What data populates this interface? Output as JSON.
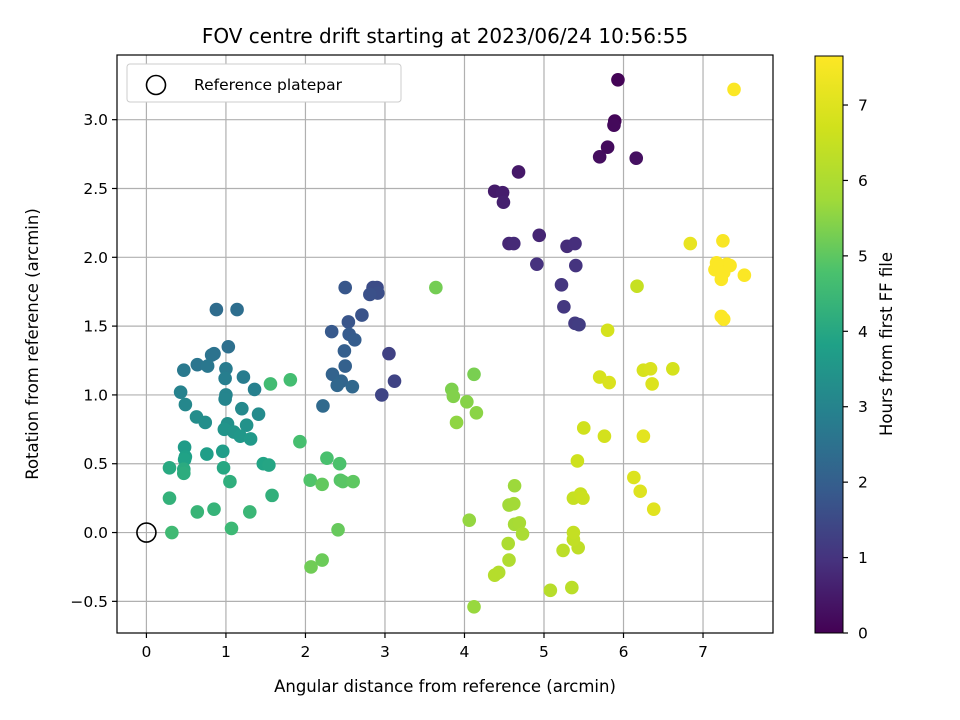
{
  "chart_data": {
    "type": "scatter",
    "title": "FOV centre drift starting at 2023/06/24 10:56:55",
    "xlabel": "Angular distance from reference (arcmin)",
    "ylabel": "Rotation from reference (arcmin)",
    "xlim": [
      -0.37,
      7.88
    ],
    "ylim": [
      -0.73,
      3.47
    ],
    "xticks": [
      0,
      1,
      2,
      3,
      4,
      5,
      6,
      7
    ],
    "yticks": [
      -0.5,
      0.0,
      0.5,
      1.0,
      1.5,
      2.0,
      2.5,
      3.0
    ],
    "xtick_labels": [
      "0",
      "1",
      "2",
      "3",
      "4",
      "5",
      "6",
      "7"
    ],
    "ytick_labels": [
      "−0.5",
      "0.0",
      "0.5",
      "1.0",
      "1.5",
      "2.0",
      "2.5",
      "3.0"
    ],
    "grid": true,
    "legend": {
      "position": "top-left",
      "entries": [
        "Reference platepar"
      ]
    },
    "reference_point": {
      "x": 0.0,
      "y": 0.0
    },
    "colorbar": {
      "label": "Hours from first FF file",
      "range": [
        0,
        7.65
      ],
      "ticks": [
        0,
        1,
        2,
        3,
        4,
        5,
        6,
        7
      ],
      "tick_labels": [
        "0",
        "1",
        "2",
        "3",
        "4",
        "5",
        "6",
        "7"
      ],
      "colormap": "viridis"
    },
    "points": [
      {
        "x": 5.93,
        "y": 3.29,
        "c": 0.05
      },
      {
        "x": 5.89,
        "y": 2.99,
        "c": 0.1
      },
      {
        "x": 5.88,
        "y": 2.96,
        "c": 0.15
      },
      {
        "x": 5.8,
        "y": 2.8,
        "c": 0.2
      },
      {
        "x": 5.7,
        "y": 2.73,
        "c": 0.25
      },
      {
        "x": 6.16,
        "y": 2.72,
        "c": 0.3
      },
      {
        "x": 4.68,
        "y": 2.62,
        "c": 0.45
      },
      {
        "x": 4.38,
        "y": 2.48,
        "c": 0.5
      },
      {
        "x": 4.48,
        "y": 2.47,
        "c": 0.55
      },
      {
        "x": 4.49,
        "y": 2.4,
        "c": 0.6
      },
      {
        "x": 4.94,
        "y": 2.16,
        "c": 0.7
      },
      {
        "x": 4.56,
        "y": 2.1,
        "c": 0.75
      },
      {
        "x": 4.62,
        "y": 2.1,
        "c": 0.8
      },
      {
        "x": 5.29,
        "y": 2.08,
        "c": 0.85
      },
      {
        "x": 5.39,
        "y": 2.1,
        "c": 0.9
      },
      {
        "x": 4.91,
        "y": 1.95,
        "c": 0.95
      },
      {
        "x": 5.4,
        "y": 1.94,
        "c": 1.0
      },
      {
        "x": 5.22,
        "y": 1.8,
        "c": 1.05
      },
      {
        "x": 5.25,
        "y": 1.64,
        "c": 1.1
      },
      {
        "x": 5.39,
        "y": 1.52,
        "c": 1.15
      },
      {
        "x": 5.44,
        "y": 1.51,
        "c": 1.2
      },
      {
        "x": 3.05,
        "y": 1.3,
        "c": 1.3
      },
      {
        "x": 3.12,
        "y": 1.1,
        "c": 1.35
      },
      {
        "x": 2.96,
        "y": 1.0,
        "c": 1.4
      },
      {
        "x": 2.9,
        "y": 1.78,
        "c": 1.5
      },
      {
        "x": 2.85,
        "y": 1.78,
        "c": 1.55
      },
      {
        "x": 2.91,
        "y": 1.74,
        "c": 1.6
      },
      {
        "x": 2.81,
        "y": 1.73,
        "c": 1.65
      },
      {
        "x": 2.71,
        "y": 1.58,
        "c": 1.7
      },
      {
        "x": 2.54,
        "y": 1.53,
        "c": 1.75
      },
      {
        "x": 2.5,
        "y": 1.78,
        "c": 1.8
      },
      {
        "x": 2.33,
        "y": 1.46,
        "c": 1.85
      },
      {
        "x": 2.55,
        "y": 1.44,
        "c": 1.9
      },
      {
        "x": 2.62,
        "y": 1.4,
        "c": 1.95
      },
      {
        "x": 2.49,
        "y": 1.32,
        "c": 2.0
      },
      {
        "x": 2.5,
        "y": 1.21,
        "c": 2.05
      },
      {
        "x": 2.34,
        "y": 1.15,
        "c": 2.1
      },
      {
        "x": 2.45,
        "y": 1.1,
        "c": 2.15
      },
      {
        "x": 2.4,
        "y": 1.07,
        "c": 2.2
      },
      {
        "x": 2.59,
        "y": 1.06,
        "c": 2.25
      },
      {
        "x": 2.22,
        "y": 0.92,
        "c": 2.3
      },
      {
        "x": 0.88,
        "y": 1.62,
        "c": 2.35
      },
      {
        "x": 1.14,
        "y": 1.62,
        "c": 2.4
      },
      {
        "x": 1.03,
        "y": 1.35,
        "c": 2.45
      },
      {
        "x": 0.85,
        "y": 1.3,
        "c": 2.5
      },
      {
        "x": 0.82,
        "y": 1.29,
        "c": 2.55
      },
      {
        "x": 0.64,
        "y": 1.22,
        "c": 2.6
      },
      {
        "x": 0.77,
        "y": 1.21,
        "c": 2.65
      },
      {
        "x": 0.47,
        "y": 1.18,
        "c": 2.7
      },
      {
        "x": 1.0,
        "y": 1.19,
        "c": 2.75
      },
      {
        "x": 1.22,
        "y": 1.13,
        "c": 2.8
      },
      {
        "x": 0.99,
        "y": 1.12,
        "c": 2.85
      },
      {
        "x": 1.36,
        "y": 1.04,
        "c": 2.9
      },
      {
        "x": 0.43,
        "y": 1.02,
        "c": 2.95
      },
      {
        "x": 1.0,
        "y": 1.0,
        "c": 3.0
      },
      {
        "x": 0.99,
        "y": 0.97,
        "c": 3.05
      },
      {
        "x": 0.49,
        "y": 0.93,
        "c": 3.1
      },
      {
        "x": 1.2,
        "y": 0.9,
        "c": 3.15
      },
      {
        "x": 1.41,
        "y": 0.86,
        "c": 3.2
      },
      {
        "x": 0.63,
        "y": 0.84,
        "c": 3.25
      },
      {
        "x": 0.74,
        "y": 0.8,
        "c": 3.3
      },
      {
        "x": 1.02,
        "y": 0.79,
        "c": 3.35
      },
      {
        "x": 1.26,
        "y": 0.78,
        "c": 3.4
      },
      {
        "x": 0.98,
        "y": 0.75,
        "c": 3.45
      },
      {
        "x": 1.1,
        "y": 0.73,
        "c": 3.5
      },
      {
        "x": 1.18,
        "y": 0.7,
        "c": 3.55
      },
      {
        "x": 1.31,
        "y": 0.68,
        "c": 3.6
      },
      {
        "x": 0.48,
        "y": 0.62,
        "c": 3.65
      },
      {
        "x": 0.96,
        "y": 0.59,
        "c": 3.7
      },
      {
        "x": 0.76,
        "y": 0.57,
        "c": 3.75
      },
      {
        "x": 0.49,
        "y": 0.55,
        "c": 3.8
      },
      {
        "x": 0.48,
        "y": 0.53,
        "c": 3.85
      },
      {
        "x": 1.47,
        "y": 0.5,
        "c": 3.9
      },
      {
        "x": 1.54,
        "y": 0.49,
        "c": 3.95
      },
      {
        "x": 0.97,
        "y": 0.47,
        "c": 4.0
      },
      {
        "x": 0.29,
        "y": 0.47,
        "c": 4.05
      },
      {
        "x": 0.47,
        "y": 0.46,
        "c": 4.1
      },
      {
        "x": 0.47,
        "y": 0.43,
        "c": 4.15
      },
      {
        "x": 1.05,
        "y": 0.37,
        "c": 4.2
      },
      {
        "x": 1.58,
        "y": 0.27,
        "c": 4.25
      },
      {
        "x": 0.29,
        "y": 0.25,
        "c": 4.3
      },
      {
        "x": 0.85,
        "y": 0.17,
        "c": 4.35
      },
      {
        "x": 0.64,
        "y": 0.15,
        "c": 4.4
      },
      {
        "x": 1.3,
        "y": 0.15,
        "c": 4.45
      },
      {
        "x": 1.07,
        "y": 0.03,
        "c": 4.5
      },
      {
        "x": 0.32,
        "y": 0.0,
        "c": 4.55
      },
      {
        "x": 1.56,
        "y": 1.08,
        "c": 4.6
      },
      {
        "x": 1.81,
        "y": 1.11,
        "c": 4.65
      },
      {
        "x": 1.93,
        "y": 0.66,
        "c": 4.7
      },
      {
        "x": 2.27,
        "y": 0.54,
        "c": 4.75
      },
      {
        "x": 2.43,
        "y": 0.5,
        "c": 4.8
      },
      {
        "x": 2.06,
        "y": 0.38,
        "c": 4.85
      },
      {
        "x": 2.44,
        "y": 0.38,
        "c": 4.9
      },
      {
        "x": 2.47,
        "y": 0.37,
        "c": 4.95
      },
      {
        "x": 2.6,
        "y": 0.37,
        "c": 5.0
      },
      {
        "x": 2.21,
        "y": 0.35,
        "c": 5.05
      },
      {
        "x": 2.41,
        "y": 0.02,
        "c": 5.1
      },
      {
        "x": 2.21,
        "y": -0.2,
        "c": 5.15
      },
      {
        "x": 2.07,
        "y": -0.25,
        "c": 5.2
      },
      {
        "x": 3.64,
        "y": 1.78,
        "c": 5.25
      },
      {
        "x": 4.12,
        "y": 1.15,
        "c": 5.3
      },
      {
        "x": 3.84,
        "y": 1.04,
        "c": 5.35
      },
      {
        "x": 3.86,
        "y": 0.99,
        "c": 5.4
      },
      {
        "x": 4.03,
        "y": 0.95,
        "c": 5.45
      },
      {
        "x": 4.15,
        "y": 0.87,
        "c": 5.5
      },
      {
        "x": 3.9,
        "y": 0.8,
        "c": 5.55
      },
      {
        "x": 4.06,
        "y": 0.09,
        "c": 5.6
      },
      {
        "x": 4.12,
        "y": -0.54,
        "c": 5.65
      },
      {
        "x": 4.63,
        "y": 0.34,
        "c": 5.7
      },
      {
        "x": 4.56,
        "y": 0.2,
        "c": 5.75
      },
      {
        "x": 4.62,
        "y": 0.21,
        "c": 5.8
      },
      {
        "x": 4.63,
        "y": 0.06,
        "c": 5.85
      },
      {
        "x": 4.69,
        "y": 0.07,
        "c": 5.9
      },
      {
        "x": 4.73,
        "y": -0.01,
        "c": 5.95
      },
      {
        "x": 4.55,
        "y": -0.08,
        "c": 6.0
      },
      {
        "x": 4.56,
        "y": -0.2,
        "c": 6.05
      },
      {
        "x": 4.43,
        "y": -0.29,
        "c": 6.1
      },
      {
        "x": 4.38,
        "y": -0.31,
        "c": 6.15
      },
      {
        "x": 5.08,
        "y": -0.42,
        "c": 6.2
      },
      {
        "x": 5.35,
        "y": -0.4,
        "c": 6.25
      },
      {
        "x": 5.24,
        "y": -0.13,
        "c": 6.3
      },
      {
        "x": 5.43,
        "y": -0.11,
        "c": 6.35
      },
      {
        "x": 5.37,
        "y": -0.05,
        "c": 6.4
      },
      {
        "x": 5.37,
        "y": 0.0,
        "c": 6.45
      },
      {
        "x": 5.37,
        "y": 0.25,
        "c": 6.5
      },
      {
        "x": 5.46,
        "y": 0.28,
        "c": 6.55
      },
      {
        "x": 5.49,
        "y": 0.25,
        "c": 6.6
      },
      {
        "x": 5.42,
        "y": 0.52,
        "c": 6.65
      },
      {
        "x": 5.5,
        "y": 0.76,
        "c": 6.7
      },
      {
        "x": 5.76,
        "y": 0.7,
        "c": 6.75
      },
      {
        "x": 5.8,
        "y": 1.47,
        "c": 6.8
      },
      {
        "x": 5.7,
        "y": 1.13,
        "c": 6.85
      },
      {
        "x": 5.82,
        "y": 1.09,
        "c": 6.9
      },
      {
        "x": 6.13,
        "y": 0.4,
        "c": 6.95
      },
      {
        "x": 6.21,
        "y": 0.3,
        "c": 7.0
      },
      {
        "x": 6.38,
        "y": 0.17,
        "c": 7.05
      },
      {
        "x": 6.25,
        "y": 0.7,
        "c": 7.1
      },
      {
        "x": 6.17,
        "y": 1.79,
        "c": 6.5
      },
      {
        "x": 6.25,
        "y": 1.18,
        "c": 6.85
      },
      {
        "x": 6.34,
        "y": 1.19,
        "c": 6.9
      },
      {
        "x": 6.36,
        "y": 1.08,
        "c": 6.95
      },
      {
        "x": 6.62,
        "y": 1.19,
        "c": 6.8
      },
      {
        "x": 6.84,
        "y": 2.1,
        "c": 7.2
      },
      {
        "x": 7.39,
        "y": 3.22,
        "c": 7.6
      },
      {
        "x": 7.25,
        "y": 2.12,
        "c": 7.55
      },
      {
        "x": 7.17,
        "y": 1.96,
        "c": 7.6
      },
      {
        "x": 7.3,
        "y": 1.95,
        "c": 7.6
      },
      {
        "x": 7.15,
        "y": 1.91,
        "c": 7.6
      },
      {
        "x": 7.2,
        "y": 1.93,
        "c": 7.6
      },
      {
        "x": 7.26,
        "y": 1.89,
        "c": 7.6
      },
      {
        "x": 7.34,
        "y": 1.94,
        "c": 7.6
      },
      {
        "x": 7.52,
        "y": 1.87,
        "c": 7.6
      },
      {
        "x": 7.23,
        "y": 1.84,
        "c": 7.6
      },
      {
        "x": 7.23,
        "y": 1.57,
        "c": 7.6
      },
      {
        "x": 7.26,
        "y": 1.55,
        "c": 7.6
      }
    ]
  }
}
